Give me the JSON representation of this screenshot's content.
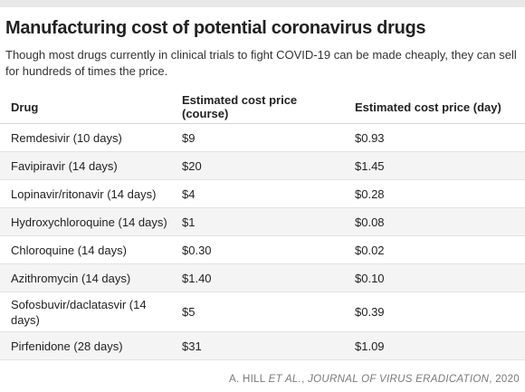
{
  "title": "Manufacturing cost of potential coronavirus drugs",
  "subtitle": "Though most drugs currently in clinical trials to fight COVID-19 can be made cheaply, they can sell for hundreds of times the price.",
  "source": {
    "prefix": "A. HILL ",
    "etal": "ET AL.",
    "sep": ", ",
    "journal": "JOURNAL OF VIRUS ERADICATION",
    "year": ", 2020"
  },
  "chart_data": {
    "type": "table",
    "title": "Manufacturing cost of potential coronavirus drugs",
    "subtitle": "Though most drugs currently in clinical trials to fight COVID-19 can be made cheaply, they can sell for hundreds of times the price.",
    "columns": [
      "Drug",
      "Estimated cost price (course)",
      "Estimated cost price (day)"
    ],
    "rows": [
      [
        "Remdesivir (10 days)",
        "$9",
        "$0.93"
      ],
      [
        "Favipiravir (14 days)",
        "$20",
        "$1.45"
      ],
      [
        "Lopinavir/ritonavir (14 days)",
        "$4",
        "$0.28"
      ],
      [
        "Hydroxychloroquine (14 days)",
        "$1",
        "$0.08"
      ],
      [
        "Chloroquine (14 days)",
        "$0.30",
        "$0.02"
      ],
      [
        "Azithromycin (14 days)",
        "$1.40",
        "$0.10"
      ],
      [
        "Sofosbuvir/daclatasvir (14 days)",
        "$5",
        "$0.39"
      ],
      [
        "Pirfenidone (28 days)",
        "$31",
        "$1.09"
      ]
    ]
  }
}
